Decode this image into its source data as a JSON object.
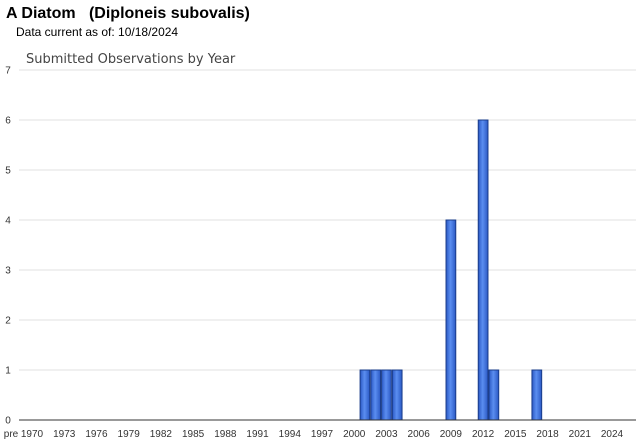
{
  "header": {
    "title": "A Diatom   (Diploneis subovalis)",
    "subtitle": "Data current as of: 10/18/2024"
  },
  "chart_data": {
    "type": "bar",
    "title": "Submitted Observations by Year",
    "xlabel": "",
    "ylabel": "",
    "ylim": [
      0,
      7
    ],
    "yticks": [
      0,
      1,
      2,
      3,
      4,
      5,
      6,
      7
    ],
    "grid": true,
    "bar_color": "#3d6fd6",
    "bar_edge_color": "#1a3c8a",
    "x_categories": [
      "pre",
      "1970",
      "1971",
      "1972",
      "1973",
      "1974",
      "1975",
      "1976",
      "1977",
      "1978",
      "1979",
      "1980",
      "1981",
      "1982",
      "1983",
      "1984",
      "1985",
      "1986",
      "1987",
      "1988",
      "1989",
      "1990",
      "1991",
      "1992",
      "1993",
      "1994",
      "1995",
      "1996",
      "1997",
      "1998",
      "1999",
      "2000",
      "2001",
      "2002",
      "2003",
      "2004",
      "2005",
      "2006",
      "2007",
      "2008",
      "2009",
      "2010",
      "2011",
      "2012",
      "2013",
      "2014",
      "2015",
      "2016",
      "2017",
      "2018",
      "2019",
      "2020",
      "2021",
      "2022",
      "2023",
      "2024"
    ],
    "x_tick_labels": [
      "pre",
      "1970",
      "1973",
      "1976",
      "1979",
      "1982",
      "1985",
      "1988",
      "1991",
      "1994",
      "1997",
      "2000",
      "2003",
      "2006",
      "2009",
      "2012",
      "2015",
      "2018",
      "2021",
      "2024"
    ],
    "values": [
      {
        "year": "2001",
        "count": 1
      },
      {
        "year": "2002",
        "count": 1
      },
      {
        "year": "2003",
        "count": 1
      },
      {
        "year": "2004",
        "count": 1
      },
      {
        "year": "2009",
        "count": 4
      },
      {
        "year": "2012",
        "count": 6
      },
      {
        "year": "2013",
        "count": 1
      },
      {
        "year": "2017",
        "count": 1
      }
    ]
  }
}
